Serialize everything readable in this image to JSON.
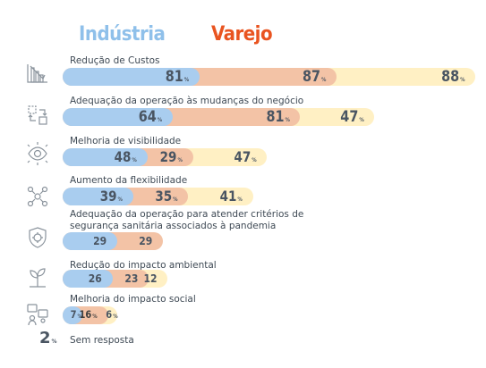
{
  "legend": {
    "industria": "Indústria",
    "varejo": "Varejo",
    "third": ""
  },
  "colors": {
    "industria": "#a9cdef",
    "varejo": "#f3c3a6",
    "third": "#fff0c4",
    "legend_industria": "#8fc0ea",
    "legend_varejo": "#e95420",
    "legend_third": "#fff2b8"
  },
  "chart_data": {
    "type": "bar",
    "layout": "stacked-horizontal",
    "categories": [
      "Redução de Custos",
      "Adequação da operação às mudanças do negócio",
      "Melhoria de visibilidade",
      "Aumento da flexibilidade",
      "Adequação da operação para atender critérios de segurança sanitária associados à pandemia",
      "Redução do impacto ambiental",
      "Melhoria do impacto social"
    ],
    "series": [
      {
        "name": "Indústria",
        "values": [
          81,
          64,
          48,
          39,
          29,
          26,
          7
        ]
      },
      {
        "name": "Varejo",
        "values": [
          87,
          81,
          29,
          35,
          29,
          23,
          16
        ]
      },
      {
        "values": [
          88,
          47,
          47,
          41,
          null,
          12,
          6
        ]
      }
    ],
    "labels_with_pct": [
      [
        true,
        true,
        true
      ],
      [
        true,
        true,
        true
      ],
      [
        true,
        true,
        true
      ],
      [
        true,
        true,
        true
      ],
      [
        false,
        false,
        false
      ],
      [
        false,
        false,
        false
      ],
      [
        true,
        true,
        true
      ]
    ],
    "no_response": {
      "value": "2",
      "pct": "%",
      "label": "Sem resposta"
    }
  },
  "icons": [
    "chart-down-icon",
    "swap-arrows-icon",
    "eye-icon",
    "flexibility-icon",
    "shield-virus-icon",
    "plant-icon",
    "people-icon"
  ]
}
